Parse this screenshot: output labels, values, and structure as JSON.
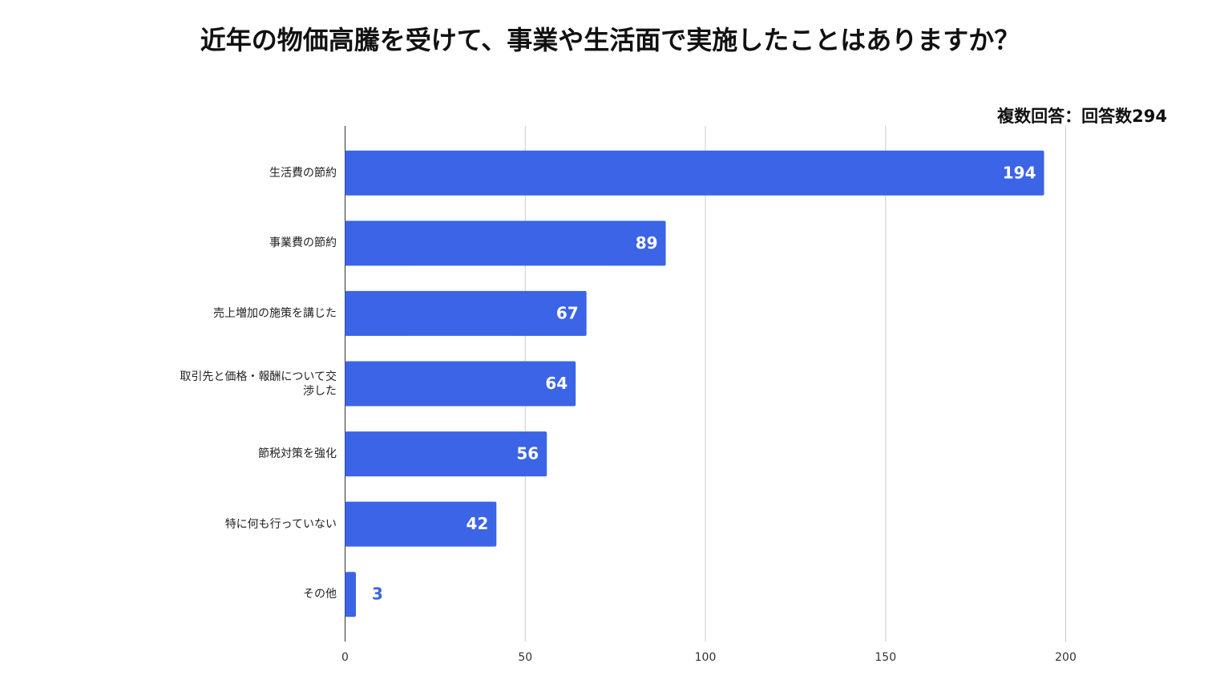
{
  "chart_data": {
    "type": "bar",
    "orientation": "horizontal",
    "title": "近年の物価高騰を受けて、事業や生活面で実施したことはありますか？",
    "annotation": "複数回答：回答数294",
    "categories": [
      "生活費の節約",
      "事業費の節約",
      "売上増加の施策を講じた",
      "取引先と価格・報酬について交渉した",
      "節税対策を強化",
      "特に何も行っていない",
      "その他"
    ],
    "values": [
      194,
      89,
      67,
      64,
      56,
      42,
      3
    ],
    "color": "#3b64e6",
    "xlim": [
      0,
      200
    ],
    "xticks": [
      0,
      50,
      100,
      150,
      200
    ],
    "grid": true
  }
}
